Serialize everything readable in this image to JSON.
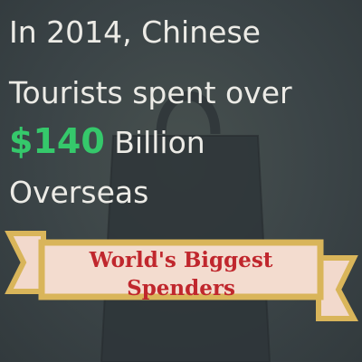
{
  "headline": {
    "line1": "In 2014, Chinese",
    "line2": "Tourists spent over",
    "amount": "$140",
    "line3_rest": " Billion",
    "line4": "Overseas"
  },
  "banner": {
    "line1": "World's Biggest",
    "line2": "Spenders"
  },
  "colors": {
    "background": "#3b4447",
    "headline_text": "#ecebe6",
    "amount": "#35c86b",
    "banner_fill": "#f3dccf",
    "banner_border": "#d9b55a",
    "banner_text": "#c0272d",
    "bag_shape": "#2d3436"
  },
  "icons": [
    "shopping-bag-icon"
  ]
}
